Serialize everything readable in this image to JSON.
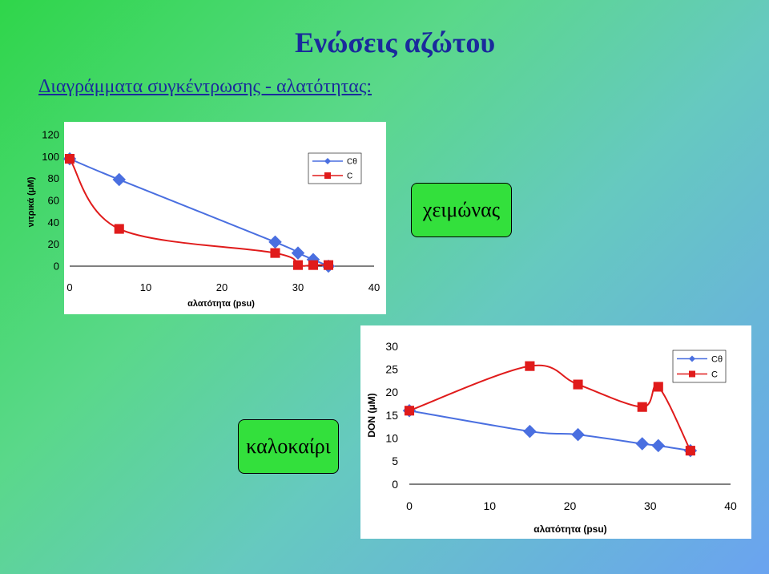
{
  "slide": {
    "title": "Ενώσεις αζώτου",
    "subtitle": "Διαγράμματα συγκέντρωσης - αλατότητας:",
    "winter_label": "χειμώνας",
    "summer_label": "καλοκαίρι"
  },
  "chart_data": [
    {
      "type": "line",
      "title": "",
      "xlabel": "αλατότητα (psu)",
      "ylabel": "νιτρικά (μM)",
      "xlim": [
        0,
        40
      ],
      "ylim": [
        0,
        120
      ],
      "xticks": [
        0,
        10,
        20,
        30,
        40
      ],
      "yticks": [
        0,
        20,
        40,
        60,
        80,
        100,
        120
      ],
      "grid": false,
      "legend_position": "top-right",
      "series": [
        {
          "name": "Cθ",
          "color": "#4a6fe0",
          "marker": "diamond",
          "x": [
            0,
            6.5,
            27,
            30,
            32,
            34
          ],
          "y": [
            98,
            79,
            22,
            12,
            6,
            0
          ]
        },
        {
          "name": "C",
          "color": "#e01b1b",
          "marker": "square",
          "x": [
            0,
            6.5,
            27,
            30,
            32,
            34
          ],
          "y": [
            98,
            34,
            12,
            1,
            1,
            1
          ]
        }
      ]
    },
    {
      "type": "line",
      "title": "",
      "xlabel": "αλατότητα (psu)",
      "ylabel": "DON (μM)",
      "xlim": [
        0,
        40
      ],
      "ylim": [
        0,
        30
      ],
      "xticks": [
        0,
        10,
        20,
        30,
        40
      ],
      "yticks": [
        0,
        5,
        10,
        15,
        20,
        25,
        30
      ],
      "grid": false,
      "legend_position": "top-right",
      "series": [
        {
          "name": "Cθ",
          "color": "#4a6fe0",
          "marker": "diamond",
          "x": [
            0,
            15,
            21,
            29,
            31,
            35
          ],
          "y": [
            16,
            11.5,
            10.8,
            8.8,
            8.4,
            7.3
          ]
        },
        {
          "name": "C",
          "color": "#e01b1b",
          "marker": "square",
          "x": [
            0,
            15,
            21,
            29,
            31,
            35
          ],
          "y": [
            16,
            25.7,
            21.7,
            16.8,
            21.2,
            7.3
          ]
        }
      ]
    }
  ]
}
